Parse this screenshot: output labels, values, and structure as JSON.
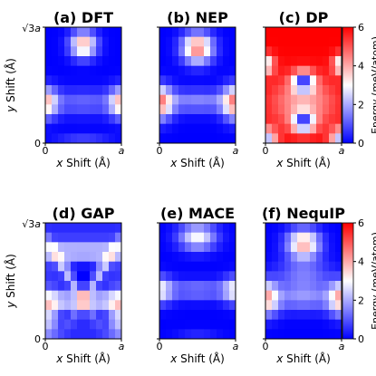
{
  "chart_data": {
    "type": "heatmap",
    "colorbar": {
      "label": "Energy (meV/atom)",
      "ticks": [
        "0",
        "2",
        "4",
        "6"
      ],
      "range": [
        0,
        6
      ],
      "colormap": "bwr",
      "colors": {
        "low": "#0000ff",
        "mid": "#ffffff",
        "high": "#ff0000"
      }
    },
    "axes": {
      "xlabel": "x Shift (Å)",
      "ylabel": "y Shift (Å)",
      "xticks": [
        "0",
        "a"
      ],
      "ytick_zero": "0",
      "ytick_top_prefix": "√3",
      "ytick_top_suffix": "a"
    },
    "panels": [
      {
        "title": "(a) DFT",
        "kind": "ref"
      },
      {
        "title": "(b) NEP",
        "kind": "nep"
      },
      {
        "title": "(c) DP",
        "kind": "dp"
      },
      {
        "title": "(d) GAP",
        "kind": "gap"
      },
      {
        "title": "(e) MACE",
        "kind": "mace"
      },
      {
        "title": "(f) NequIP",
        "kind": "nequip"
      }
    ],
    "grid": false
  }
}
